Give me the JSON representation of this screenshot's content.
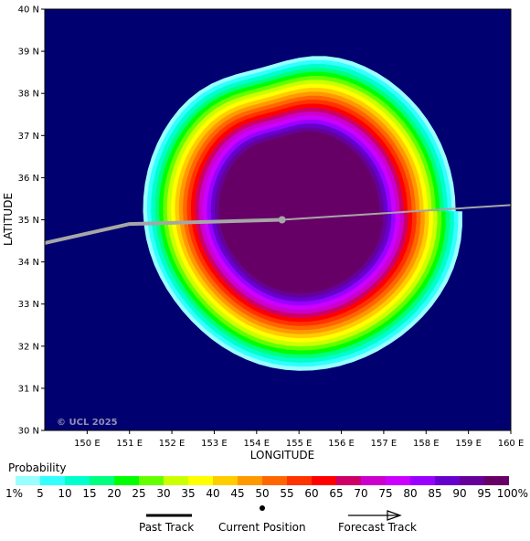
{
  "map": {
    "lat_ticks": [
      "30 N",
      "31 N",
      "32 N",
      "33 N",
      "34 N",
      "35 N",
      "36 N",
      "37 N",
      "38 N",
      "39 N",
      "40 N"
    ],
    "lon_ticks": [
      "150 E",
      "151 E",
      "152 E",
      "153 E",
      "154 E",
      "155 E",
      "156 E",
      "157 E",
      "158 E",
      "159 E",
      "160 E"
    ],
    "ylabel": "LATITUDE",
    "xlabel": "LONGITUDE",
    "copyright": "© UCL 2025",
    "lat_range": [
      30,
      40
    ],
    "lon_range": [
      149,
      160
    ],
    "background_color": "#000070",
    "track_color": "#a6a6a6",
    "current_position": {
      "lon": 154.6,
      "lat": 35.0
    },
    "past_track": [
      {
        "lon": 149.0,
        "lat": 34.45
      },
      {
        "lon": 151.0,
        "lat": 34.9
      },
      {
        "lon": 154.6,
        "lat": 35.0
      }
    ],
    "forecast_track": [
      {
        "lon": 154.6,
        "lat": 35.0
      },
      {
        "lon": 160.0,
        "lat": 35.35
      }
    ],
    "probability_center": {
      "lon": 155.0,
      "lat": 35.2
    }
  },
  "legend": {
    "title": "Probability",
    "colors": [
      "#99ffff",
      "#33ffff",
      "#00ffcc",
      "#00ff7f",
      "#00ff00",
      "#66ff00",
      "#ccff00",
      "#ffff00",
      "#ffcc00",
      "#ff9900",
      "#ff6600",
      "#ff3300",
      "#ff0000",
      "#cc0066",
      "#cc00cc",
      "#cc00ff",
      "#9900ff",
      "#6600cc",
      "#660099",
      "#660066"
    ],
    "labels": [
      "1%",
      "5",
      "10",
      "15",
      "20",
      "25",
      "30",
      "35",
      "40",
      "45",
      "50",
      "55",
      "60",
      "65",
      "70",
      "75",
      "80",
      "85",
      "90",
      "95",
      "100%"
    ]
  },
  "track_key": {
    "past_label": "Past Track",
    "current_label": "Current Position",
    "forecast_label": "Forecast Track"
  }
}
